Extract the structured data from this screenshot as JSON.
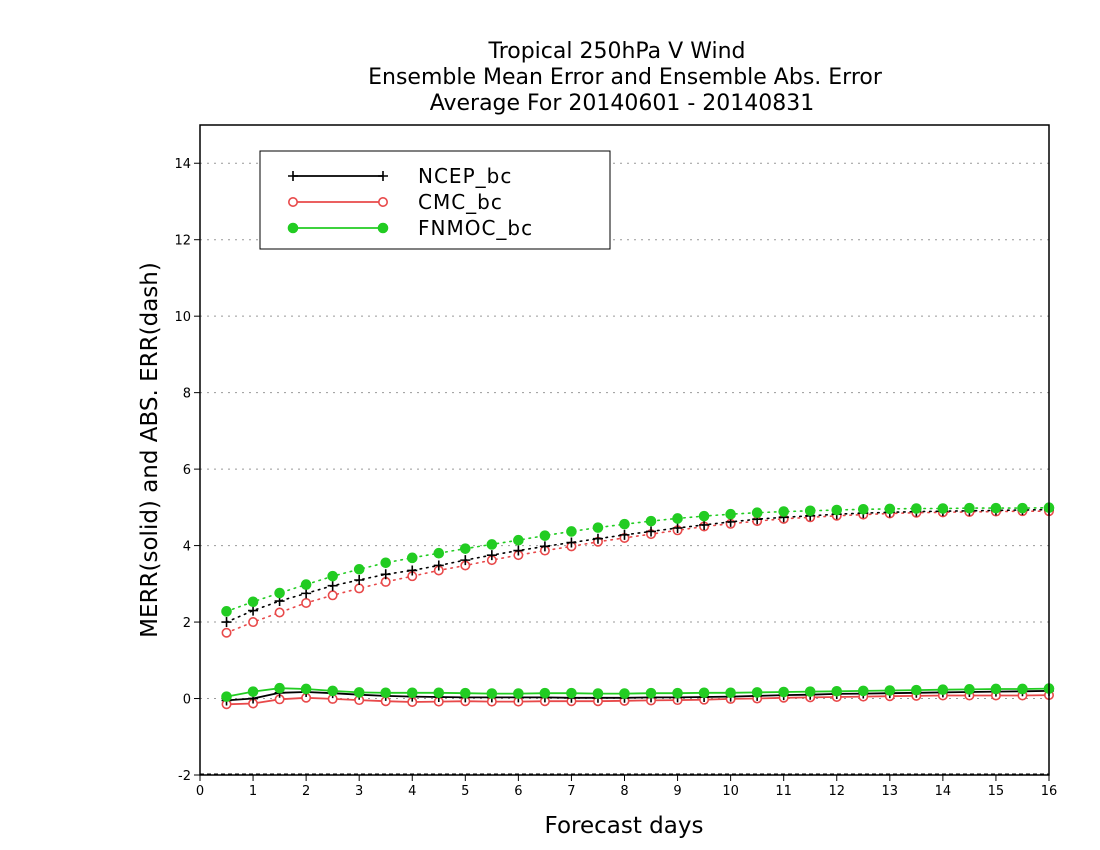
{
  "chart_data": {
    "type": "line",
    "title": [
      "Tropical 250hPa V Wind",
      "Ensemble Mean Error and Ensemble Abs. Error",
      "Average For 20140601 - 20140831"
    ],
    "xlabel": "Forecast days",
    "ylabel": "MERR(solid) and ABS. ERR(dash)",
    "xlim": [
      0,
      16
    ],
    "ylim": [
      -2,
      15
    ],
    "xticks": [
      0,
      1,
      2,
      3,
      4,
      5,
      6,
      7,
      8,
      9,
      10,
      11,
      12,
      13,
      14,
      15,
      16
    ],
    "yticks": [
      -2,
      0,
      2,
      4,
      6,
      8,
      10,
      12,
      14
    ],
    "grid": "horizontal-dotted",
    "legend": {
      "placement": "top-left"
    },
    "x": [
      0.5,
      1,
      1.5,
      2,
      2.5,
      3,
      3.5,
      4,
      4.5,
      5,
      5.5,
      6,
      6.5,
      7,
      7.5,
      8,
      8.5,
      9,
      9.5,
      10,
      10.5,
      11,
      11.5,
      12,
      12.5,
      13,
      13.5,
      14,
      14.5,
      15,
      15.5,
      16
    ],
    "series": [
      {
        "name": "NCEP_bc",
        "color": "#000000",
        "marker": "plus",
        "mean_error": [
          -0.05,
          0.0,
          0.15,
          0.17,
          0.14,
          0.1,
          0.07,
          0.05,
          0.04,
          0.03,
          0.03,
          0.03,
          0.03,
          0.02,
          0.02,
          0.02,
          0.03,
          0.03,
          0.04,
          0.05,
          0.07,
          0.09,
          0.1,
          0.12,
          0.13,
          0.14,
          0.15,
          0.16,
          0.17,
          0.18,
          0.19,
          0.2
        ],
        "abs_error": [
          2.0,
          2.3,
          2.55,
          2.75,
          2.95,
          3.1,
          3.25,
          3.35,
          3.48,
          3.62,
          3.75,
          3.87,
          3.98,
          4.08,
          4.18,
          4.28,
          4.37,
          4.46,
          4.54,
          4.62,
          4.69,
          4.74,
          4.78,
          4.82,
          4.85,
          4.87,
          4.89,
          4.9,
          4.91,
          4.92,
          4.93,
          4.94
        ]
      },
      {
        "name": "CMC_bc",
        "color": "#e8494a",
        "marker": "open-circle",
        "mean_error": [
          -0.15,
          -0.13,
          -0.02,
          0.02,
          -0.01,
          -0.04,
          -0.07,
          -0.09,
          -0.08,
          -0.07,
          -0.08,
          -0.08,
          -0.07,
          -0.07,
          -0.07,
          -0.06,
          -0.05,
          -0.04,
          -0.03,
          -0.01,
          0.0,
          0.02,
          0.03,
          0.04,
          0.05,
          0.06,
          0.07,
          0.08,
          0.08,
          0.08,
          0.08,
          0.09
        ],
        "abs_error": [
          1.72,
          2.0,
          2.25,
          2.5,
          2.7,
          2.88,
          3.05,
          3.2,
          3.35,
          3.48,
          3.62,
          3.75,
          3.87,
          3.98,
          4.1,
          4.2,
          4.3,
          4.4,
          4.5,
          4.57,
          4.64,
          4.7,
          4.74,
          4.78,
          4.81,
          4.84,
          4.86,
          4.87,
          4.88,
          4.89,
          4.9,
          4.9
        ]
      },
      {
        "name": "FNMOC_bc",
        "color": "#22cc22",
        "marker": "filled-circle",
        "mean_error": [
          0.05,
          0.18,
          0.27,
          0.25,
          0.2,
          0.16,
          0.15,
          0.15,
          0.15,
          0.14,
          0.13,
          0.13,
          0.14,
          0.14,
          0.13,
          0.13,
          0.14,
          0.14,
          0.15,
          0.15,
          0.16,
          0.17,
          0.18,
          0.19,
          0.2,
          0.21,
          0.22,
          0.23,
          0.24,
          0.25,
          0.25,
          0.26
        ],
        "abs_error": [
          2.28,
          2.53,
          2.76,
          2.98,
          3.2,
          3.38,
          3.55,
          3.68,
          3.8,
          3.92,
          4.03,
          4.14,
          4.26,
          4.37,
          4.47,
          4.56,
          4.64,
          4.71,
          4.77,
          4.82,
          4.86,
          4.89,
          4.91,
          4.93,
          4.95,
          4.96,
          4.97,
          4.97,
          4.98,
          4.98,
          4.98,
          4.99
        ]
      }
    ]
  }
}
